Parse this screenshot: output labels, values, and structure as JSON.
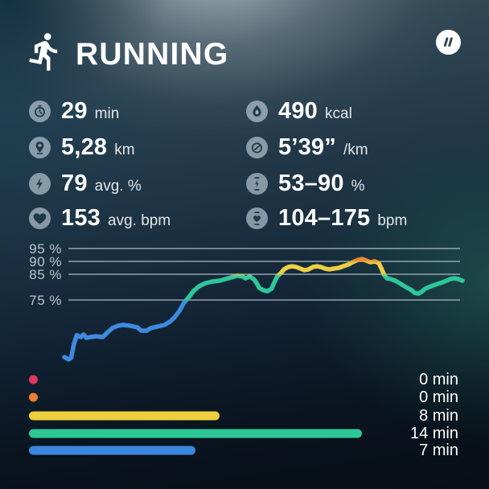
{
  "header": {
    "title": "RUNNING",
    "activity_icon": "runner-icon",
    "brand_icon": "brand-slashes-logo"
  },
  "stats": {
    "left": [
      {
        "icon": "clock-icon",
        "value": "29",
        "unit": "min"
      },
      {
        "icon": "location-pin-icon",
        "value": "5,28",
        "unit": "km"
      },
      {
        "icon": "lightning-icon",
        "value": "79",
        "unit": "avg. %"
      },
      {
        "icon": "heart-icon",
        "value": "153",
        "unit": "avg. bpm"
      }
    ],
    "right": [
      {
        "icon": "calories-flame-icon",
        "value": "490",
        "unit": "kcal"
      },
      {
        "icon": "pace-gauge-icon",
        "value": "5’39”",
        "unit": "/km"
      },
      {
        "icon": "lightning-range-icon",
        "value": "53–90",
        "unit": "%"
      },
      {
        "icon": "heart-range-icon",
        "value": "104–175",
        "unit": "bpm"
      }
    ]
  },
  "chart_data": {
    "type": "line",
    "title": "",
    "xlabel": "",
    "ylabel": "",
    "grid": true,
    "ylim": [
      50,
      97
    ],
    "x_unit": "min",
    "y_unit": "% of max heart rate",
    "yticks": [
      {
        "value": 95,
        "label": "95 %"
      },
      {
        "value": 90,
        "label": "90 %"
      },
      {
        "value": 85,
        "label": "85 %"
      },
      {
        "value": 75,
        "label": "75 %"
      }
    ],
    "value_color_bands": [
      {
        "min_pct": 90,
        "color": "#ed8733"
      },
      {
        "min_pct": 85,
        "color": "#ecd044"
      },
      {
        "min_pct": 75,
        "color": "#2ec79a"
      },
      {
        "min_pct": 0,
        "color": "#3e8ade"
      }
    ],
    "points": [
      [
        0,
        52.8
      ],
      [
        0.3,
        51.9
      ],
      [
        0.5,
        52.5
      ],
      [
        0.7,
        57.8
      ],
      [
        0.9,
        61.3
      ],
      [
        1.2,
        60.6
      ],
      [
        1.4,
        61.6
      ],
      [
        1.6,
        60.3
      ],
      [
        1.9,
        60.6
      ],
      [
        2.3,
        60.9
      ],
      [
        2.8,
        60.6
      ],
      [
        3.1,
        62.2
      ],
      [
        3.5,
        64.1
      ],
      [
        3.9,
        65.0
      ],
      [
        4.3,
        65.3
      ],
      [
        4.8,
        65.0
      ],
      [
        5.3,
        64.4
      ],
      [
        5.6,
        63.1
      ],
      [
        6.0,
        63.1
      ],
      [
        6.3,
        64.1
      ],
      [
        6.8,
        64.7
      ],
      [
        7.3,
        65.3
      ],
      [
        7.7,
        66.6
      ],
      [
        8.0,
        68.1
      ],
      [
        8.4,
        70.9
      ],
      [
        8.7,
        73.8
      ],
      [
        9.1,
        76.3
      ],
      [
        9.4,
        78.4
      ],
      [
        9.8,
        80.3
      ],
      [
        10.3,
        81.6
      ],
      [
        10.8,
        82.2
      ],
      [
        11.3,
        82.5
      ],
      [
        11.7,
        83.1
      ],
      [
        12.2,
        83.8
      ],
      [
        12.6,
        84.4
      ],
      [
        13.0,
        84.1
      ],
      [
        13.2,
        83.4
      ],
      [
        13.5,
        84.1
      ],
      [
        13.8,
        83.1
      ],
      [
        14.0,
        81.6
      ],
      [
        14.2,
        79.7
      ],
      [
        14.5,
        78.8
      ],
      [
        14.8,
        78.4
      ],
      [
        15.1,
        79.4
      ],
      [
        15.3,
        81.9
      ],
      [
        15.5,
        84.1
      ],
      [
        15.8,
        85.6
      ],
      [
        16.0,
        86.9
      ],
      [
        16.3,
        87.8
      ],
      [
        16.6,
        88.1
      ],
      [
        16.9,
        87.8
      ],
      [
        17.2,
        87.2
      ],
      [
        17.5,
        86.6
      ],
      [
        17.8,
        86.9
      ],
      [
        18.1,
        87.8
      ],
      [
        18.4,
        88.1
      ],
      [
        18.7,
        87.8
      ],
      [
        19.0,
        87.2
      ],
      [
        19.3,
        86.9
      ],
      [
        19.6,
        87.2
      ],
      [
        20.0,
        87.5
      ],
      [
        20.3,
        88.1
      ],
      [
        20.7,
        88.8
      ],
      [
        21.0,
        89.7
      ],
      [
        21.4,
        90.6
      ],
      [
        21.7,
        90.9
      ],
      [
        22.0,
        90.3
      ],
      [
        22.3,
        89.7
      ],
      [
        22.6,
        90.0
      ],
      [
        22.9,
        89.4
      ],
      [
        23.1,
        87.2
      ],
      [
        23.3,
        84.7
      ],
      [
        23.5,
        83.4
      ],
      [
        23.8,
        83.1
      ],
      [
        24.1,
        82.5
      ],
      [
        24.4,
        81.6
      ],
      [
        24.7,
        80.6
      ],
      [
        25.0,
        79.7
      ],
      [
        25.3,
        78.8
      ],
      [
        25.5,
        77.8
      ],
      [
        25.8,
        77.5
      ],
      [
        26.0,
        78.1
      ],
      [
        26.3,
        79.4
      ],
      [
        26.7,
        80.3
      ],
      [
        27.0,
        80.9
      ],
      [
        27.4,
        81.6
      ],
      [
        27.7,
        82.2
      ],
      [
        28.1,
        83.1
      ],
      [
        28.4,
        83.4
      ],
      [
        28.7,
        83.1
      ],
      [
        29.0,
        82.5
      ]
    ]
  },
  "zones_legend": {
    "items": [
      {
        "zone": "red",
        "color": "#e1375c",
        "minutes": 0,
        "label": "0 min"
      },
      {
        "zone": "orange",
        "color": "#ee7d31",
        "minutes": 0,
        "label": "0 min"
      },
      {
        "zone": "yellow",
        "color": "#eecf3d",
        "minutes": 8,
        "label": "8 min"
      },
      {
        "zone": "green",
        "color": "#2cc795",
        "minutes": 14,
        "label": "14 min"
      },
      {
        "zone": "blue",
        "color": "#3c87de",
        "minutes": 7,
        "label": "7 min"
      }
    ]
  }
}
